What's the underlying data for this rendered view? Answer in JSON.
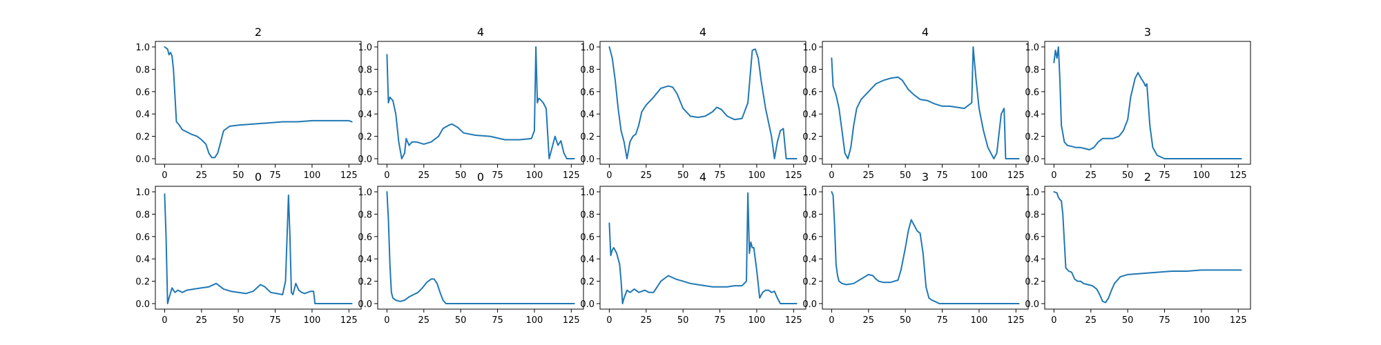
{
  "chart_data": [
    {
      "type": "line",
      "title": "2",
      "xlim": [
        0,
        127
      ],
      "ylim": [
        0,
        1
      ],
      "xticks": [
        0,
        25,
        50,
        75,
        100,
        125
      ],
      "yticks": [
        0.0,
        0.2,
        0.4,
        0.6,
        0.8,
        1.0
      ],
      "series": [
        {
          "color": "#1f77b4",
          "x": [
            0,
            2,
            3,
            4,
            5,
            6,
            8,
            10,
            12,
            15,
            18,
            22,
            25,
            28,
            30,
            32,
            34,
            36,
            38,
            40,
            44,
            50,
            60,
            70,
            80,
            90,
            100,
            110,
            120,
            125,
            127
          ],
          "y": [
            1.0,
            0.98,
            0.93,
            0.95,
            0.92,
            0.8,
            0.33,
            0.3,
            0.26,
            0.24,
            0.22,
            0.2,
            0.17,
            0.13,
            0.05,
            0.01,
            0.01,
            0.05,
            0.15,
            0.25,
            0.29,
            0.3,
            0.31,
            0.32,
            0.33,
            0.33,
            0.34,
            0.34,
            0.34,
            0.34,
            0.33
          ]
        }
      ]
    },
    {
      "type": "line",
      "title": "4",
      "xlim": [
        0,
        127
      ],
      "ylim": [
        0,
        1
      ],
      "xticks": [
        0,
        25,
        50,
        75,
        100,
        125
      ],
      "yticks": [
        0.0,
        0.2,
        0.4,
        0.6,
        0.8,
        1.0
      ],
      "series": [
        {
          "color": "#1f77b4",
          "x": [
            0,
            1,
            2,
            4,
            6,
            8,
            10,
            12,
            13,
            15,
            17,
            20,
            25,
            30,
            35,
            38,
            42,
            44,
            48,
            52,
            60,
            70,
            80,
            90,
            98,
            100,
            101,
            102,
            103,
            104,
            106,
            108,
            110,
            112,
            114,
            116,
            118,
            120,
            122,
            124,
            127
          ],
          "y": [
            0.93,
            0.5,
            0.55,
            0.52,
            0.4,
            0.15,
            0.0,
            0.05,
            0.18,
            0.12,
            0.15,
            0.15,
            0.13,
            0.15,
            0.2,
            0.27,
            0.3,
            0.31,
            0.28,
            0.23,
            0.21,
            0.2,
            0.17,
            0.17,
            0.18,
            0.25,
            1.0,
            0.5,
            0.54,
            0.53,
            0.5,
            0.45,
            0.0,
            0.1,
            0.2,
            0.12,
            0.16,
            0.05,
            0.0,
            0.0,
            0.0
          ]
        }
      ]
    },
    {
      "type": "line",
      "title": "4",
      "xlim": [
        0,
        127
      ],
      "ylim": [
        0,
        1
      ],
      "xticks": [
        0,
        25,
        50,
        75,
        100,
        125
      ],
      "yticks": [
        0.0,
        0.2,
        0.4,
        0.6,
        0.8,
        1.0
      ],
      "series": [
        {
          "color": "#1f77b4",
          "x": [
            0,
            2,
            4,
            6,
            8,
            10,
            12,
            14,
            16,
            18,
            20,
            22,
            25,
            30,
            35,
            40,
            43,
            46,
            50,
            55,
            60,
            65,
            70,
            73,
            76,
            80,
            85,
            90,
            94,
            97,
            99,
            101,
            103,
            106,
            110,
            112,
            114,
            116,
            118,
            120,
            122,
            125,
            127
          ],
          "y": [
            1.0,
            0.9,
            0.7,
            0.45,
            0.25,
            0.15,
            0.0,
            0.15,
            0.2,
            0.22,
            0.3,
            0.42,
            0.48,
            0.55,
            0.63,
            0.65,
            0.64,
            0.58,
            0.45,
            0.38,
            0.37,
            0.38,
            0.42,
            0.46,
            0.44,
            0.38,
            0.35,
            0.36,
            0.5,
            0.97,
            0.98,
            0.9,
            0.7,
            0.45,
            0.2,
            0.0,
            0.15,
            0.25,
            0.27,
            0.0,
            0.0,
            0.0,
            0.0
          ]
        }
      ]
    },
    {
      "type": "line",
      "title": "4",
      "xlim": [
        0,
        127
      ],
      "ylim": [
        0,
        1
      ],
      "xticks": [
        0,
        25,
        50,
        75,
        100,
        125
      ],
      "yticks": [
        0.0,
        0.2,
        0.4,
        0.6,
        0.8,
        1.0
      ],
      "series": [
        {
          "color": "#1f77b4",
          "x": [
            0,
            1,
            3,
            5,
            7,
            9,
            11,
            13,
            15,
            17,
            20,
            25,
            30,
            35,
            40,
            45,
            48,
            52,
            56,
            60,
            65,
            70,
            75,
            80,
            85,
            90,
            95,
            96,
            97,
            98,
            100,
            103,
            106,
            110,
            112,
            115,
            117,
            118,
            120,
            123,
            127
          ],
          "y": [
            0.9,
            0.65,
            0.57,
            0.45,
            0.25,
            0.05,
            0.0,
            0.1,
            0.3,
            0.45,
            0.53,
            0.6,
            0.67,
            0.7,
            0.72,
            0.73,
            0.7,
            0.62,
            0.57,
            0.53,
            0.52,
            0.49,
            0.47,
            0.47,
            0.46,
            0.45,
            0.5,
            1.0,
            0.85,
            0.7,
            0.45,
            0.25,
            0.1,
            0.0,
            0.05,
            0.4,
            0.45,
            0.0,
            0.0,
            0.0,
            0.0
          ]
        }
      ]
    },
    {
      "type": "line",
      "title": "3",
      "xlim": [
        0,
        127
      ],
      "ylim": [
        0,
        1
      ],
      "xticks": [
        0,
        25,
        50,
        75,
        100,
        125
      ],
      "yticks": [
        0.0,
        0.2,
        0.4,
        0.6,
        0.8,
        1.0
      ],
      "series": [
        {
          "color": "#1f77b4",
          "x": [
            0,
            1,
            2,
            3,
            4,
            5,
            7,
            9,
            12,
            15,
            18,
            21,
            24,
            27,
            30,
            33,
            36,
            40,
            44,
            47,
            50,
            52,
            55,
            57,
            59,
            61,
            62,
            63,
            65,
            67,
            70,
            75,
            80,
            90,
            100,
            110,
            120,
            127
          ],
          "y": [
            0.86,
            0.97,
            0.9,
            1.0,
            0.7,
            0.3,
            0.15,
            0.12,
            0.11,
            0.1,
            0.1,
            0.09,
            0.08,
            0.1,
            0.15,
            0.18,
            0.18,
            0.18,
            0.2,
            0.25,
            0.35,
            0.55,
            0.72,
            0.77,
            0.72,
            0.68,
            0.65,
            0.67,
            0.3,
            0.1,
            0.03,
            0.0,
            0.0,
            0.0,
            0.0,
            0.0,
            0.0,
            0.0
          ]
        }
      ]
    },
    {
      "type": "line",
      "title": "0",
      "xlim": [
        0,
        127
      ],
      "ylim": [
        0,
        1
      ],
      "xticks": [
        0,
        25,
        50,
        75,
        100,
        125
      ],
      "yticks": [
        0.0,
        0.2,
        0.4,
        0.6,
        0.8,
        1.0
      ],
      "series": [
        {
          "color": "#1f77b4",
          "x": [
            0,
            1,
            2,
            3,
            5,
            7,
            9,
            12,
            15,
            20,
            25,
            30,
            35,
            40,
            45,
            50,
            55,
            60,
            65,
            68,
            72,
            76,
            80,
            82,
            84,
            85,
            86,
            87,
            89,
            91,
            93,
            95,
            97,
            99,
            101,
            102,
            105,
            110,
            120,
            127
          ],
          "y": [
            0.98,
            0.6,
            0.0,
            0.05,
            0.14,
            0.1,
            0.12,
            0.1,
            0.12,
            0.13,
            0.14,
            0.15,
            0.18,
            0.13,
            0.11,
            0.1,
            0.09,
            0.11,
            0.17,
            0.15,
            0.1,
            0.09,
            0.08,
            0.2,
            0.97,
            0.6,
            0.1,
            0.08,
            0.18,
            0.12,
            0.1,
            0.09,
            0.1,
            0.11,
            0.11,
            0.0,
            0.0,
            0.0,
            0.0,
            0.0
          ]
        }
      ]
    },
    {
      "type": "line",
      "title": "0",
      "xlim": [
        0,
        127
      ],
      "ylim": [
        0,
        1
      ],
      "xticks": [
        0,
        25,
        50,
        75,
        100,
        125
      ],
      "yticks": [
        0.0,
        0.2,
        0.4,
        0.6,
        0.8,
        1.0
      ],
      "series": [
        {
          "color": "#1f77b4",
          "x": [
            0,
            1,
            2,
            3,
            4,
            6,
            9,
            12,
            15,
            18,
            21,
            24,
            27,
            30,
            32,
            34,
            36,
            38,
            40,
            45,
            50,
            60,
            70,
            80,
            90,
            100,
            110,
            120,
            127
          ],
          "y": [
            1.0,
            0.75,
            0.35,
            0.1,
            0.05,
            0.03,
            0.02,
            0.03,
            0.06,
            0.08,
            0.1,
            0.14,
            0.19,
            0.22,
            0.22,
            0.18,
            0.1,
            0.03,
            0.0,
            0.0,
            0.0,
            0.0,
            0.0,
            0.0,
            0.0,
            0.0,
            0.0,
            0.0,
            0.0
          ]
        }
      ]
    },
    {
      "type": "line",
      "title": "4",
      "xlim": [
        0,
        127
      ],
      "ylim": [
        0,
        1
      ],
      "xticks": [
        0,
        25,
        50,
        75,
        100,
        125
      ],
      "yticks": [
        0.0,
        0.2,
        0.4,
        0.6,
        0.8,
        1.0
      ],
      "series": [
        {
          "color": "#1f77b4",
          "x": [
            0,
            1,
            2,
            3,
            5,
            7,
            8,
            9,
            10,
            12,
            14,
            17,
            20,
            24,
            27,
            30,
            35,
            40,
            45,
            50,
            55,
            60,
            65,
            70,
            75,
            80,
            85,
            90,
            93,
            94,
            95,
            96,
            97,
            98,
            100,
            102,
            104,
            106,
            108,
            110,
            112,
            114,
            116,
            118,
            120,
            127
          ],
          "y": [
            0.72,
            0.43,
            0.48,
            0.5,
            0.45,
            0.35,
            0.2,
            0.0,
            0.05,
            0.12,
            0.1,
            0.13,
            0.1,
            0.12,
            0.1,
            0.1,
            0.2,
            0.25,
            0.22,
            0.2,
            0.18,
            0.17,
            0.16,
            0.15,
            0.15,
            0.15,
            0.16,
            0.16,
            0.2,
            0.99,
            0.45,
            0.55,
            0.5,
            0.5,
            0.3,
            0.05,
            0.1,
            0.12,
            0.12,
            0.1,
            0.11,
            0.05,
            0.0,
            0.0,
            0.0,
            0.0
          ]
        }
      ]
    },
    {
      "type": "line",
      "title": "3",
      "xlim": [
        0,
        127
      ],
      "ylim": [
        0,
        1
      ],
      "xticks": [
        0,
        25,
        50,
        75,
        100,
        125
      ],
      "yticks": [
        0.0,
        0.2,
        0.4,
        0.6,
        0.8,
        1.0
      ],
      "series": [
        {
          "color": "#1f77b4",
          "x": [
            0,
            1,
            2,
            3,
            4,
            5,
            7,
            10,
            15,
            20,
            25,
            28,
            30,
            32,
            35,
            40,
            45,
            47,
            50,
            52,
            54,
            56,
            58,
            60,
            62,
            64,
            66,
            68,
            70,
            73,
            76,
            80,
            90,
            100,
            110,
            120,
            127
          ],
          "y": [
            1.0,
            0.97,
            0.7,
            0.35,
            0.25,
            0.2,
            0.18,
            0.17,
            0.18,
            0.22,
            0.26,
            0.25,
            0.22,
            0.2,
            0.19,
            0.19,
            0.21,
            0.3,
            0.5,
            0.65,
            0.75,
            0.7,
            0.65,
            0.63,
            0.45,
            0.15,
            0.05,
            0.03,
            0.02,
            0.0,
            0.0,
            0.0,
            0.0,
            0.0,
            0.0,
            0.0,
            0.0
          ]
        }
      ]
    },
    {
      "type": "line",
      "title": "2",
      "xlim": [
        0,
        127
      ],
      "ylim": [
        0,
        1
      ],
      "xticks": [
        0,
        25,
        50,
        75,
        100,
        125
      ],
      "yticks": [
        0.0,
        0.2,
        0.4,
        0.6,
        0.8,
        1.0
      ],
      "series": [
        {
          "color": "#1f77b4",
          "x": [
            0,
            2,
            3,
            4,
            5,
            6,
            8,
            10,
            12,
            14,
            16,
            18,
            20,
            23,
            26,
            29,
            31,
            33,
            35,
            37,
            39,
            41,
            45,
            50,
            60,
            70,
            80,
            90,
            100,
            110,
            120,
            125,
            127
          ],
          "y": [
            1.0,
            0.99,
            0.95,
            0.93,
            0.92,
            0.8,
            0.32,
            0.29,
            0.28,
            0.22,
            0.2,
            0.2,
            0.18,
            0.17,
            0.16,
            0.13,
            0.08,
            0.02,
            0.01,
            0.05,
            0.12,
            0.18,
            0.24,
            0.26,
            0.27,
            0.28,
            0.29,
            0.29,
            0.3,
            0.3,
            0.3,
            0.3,
            0.3
          ]
        }
      ]
    }
  ]
}
